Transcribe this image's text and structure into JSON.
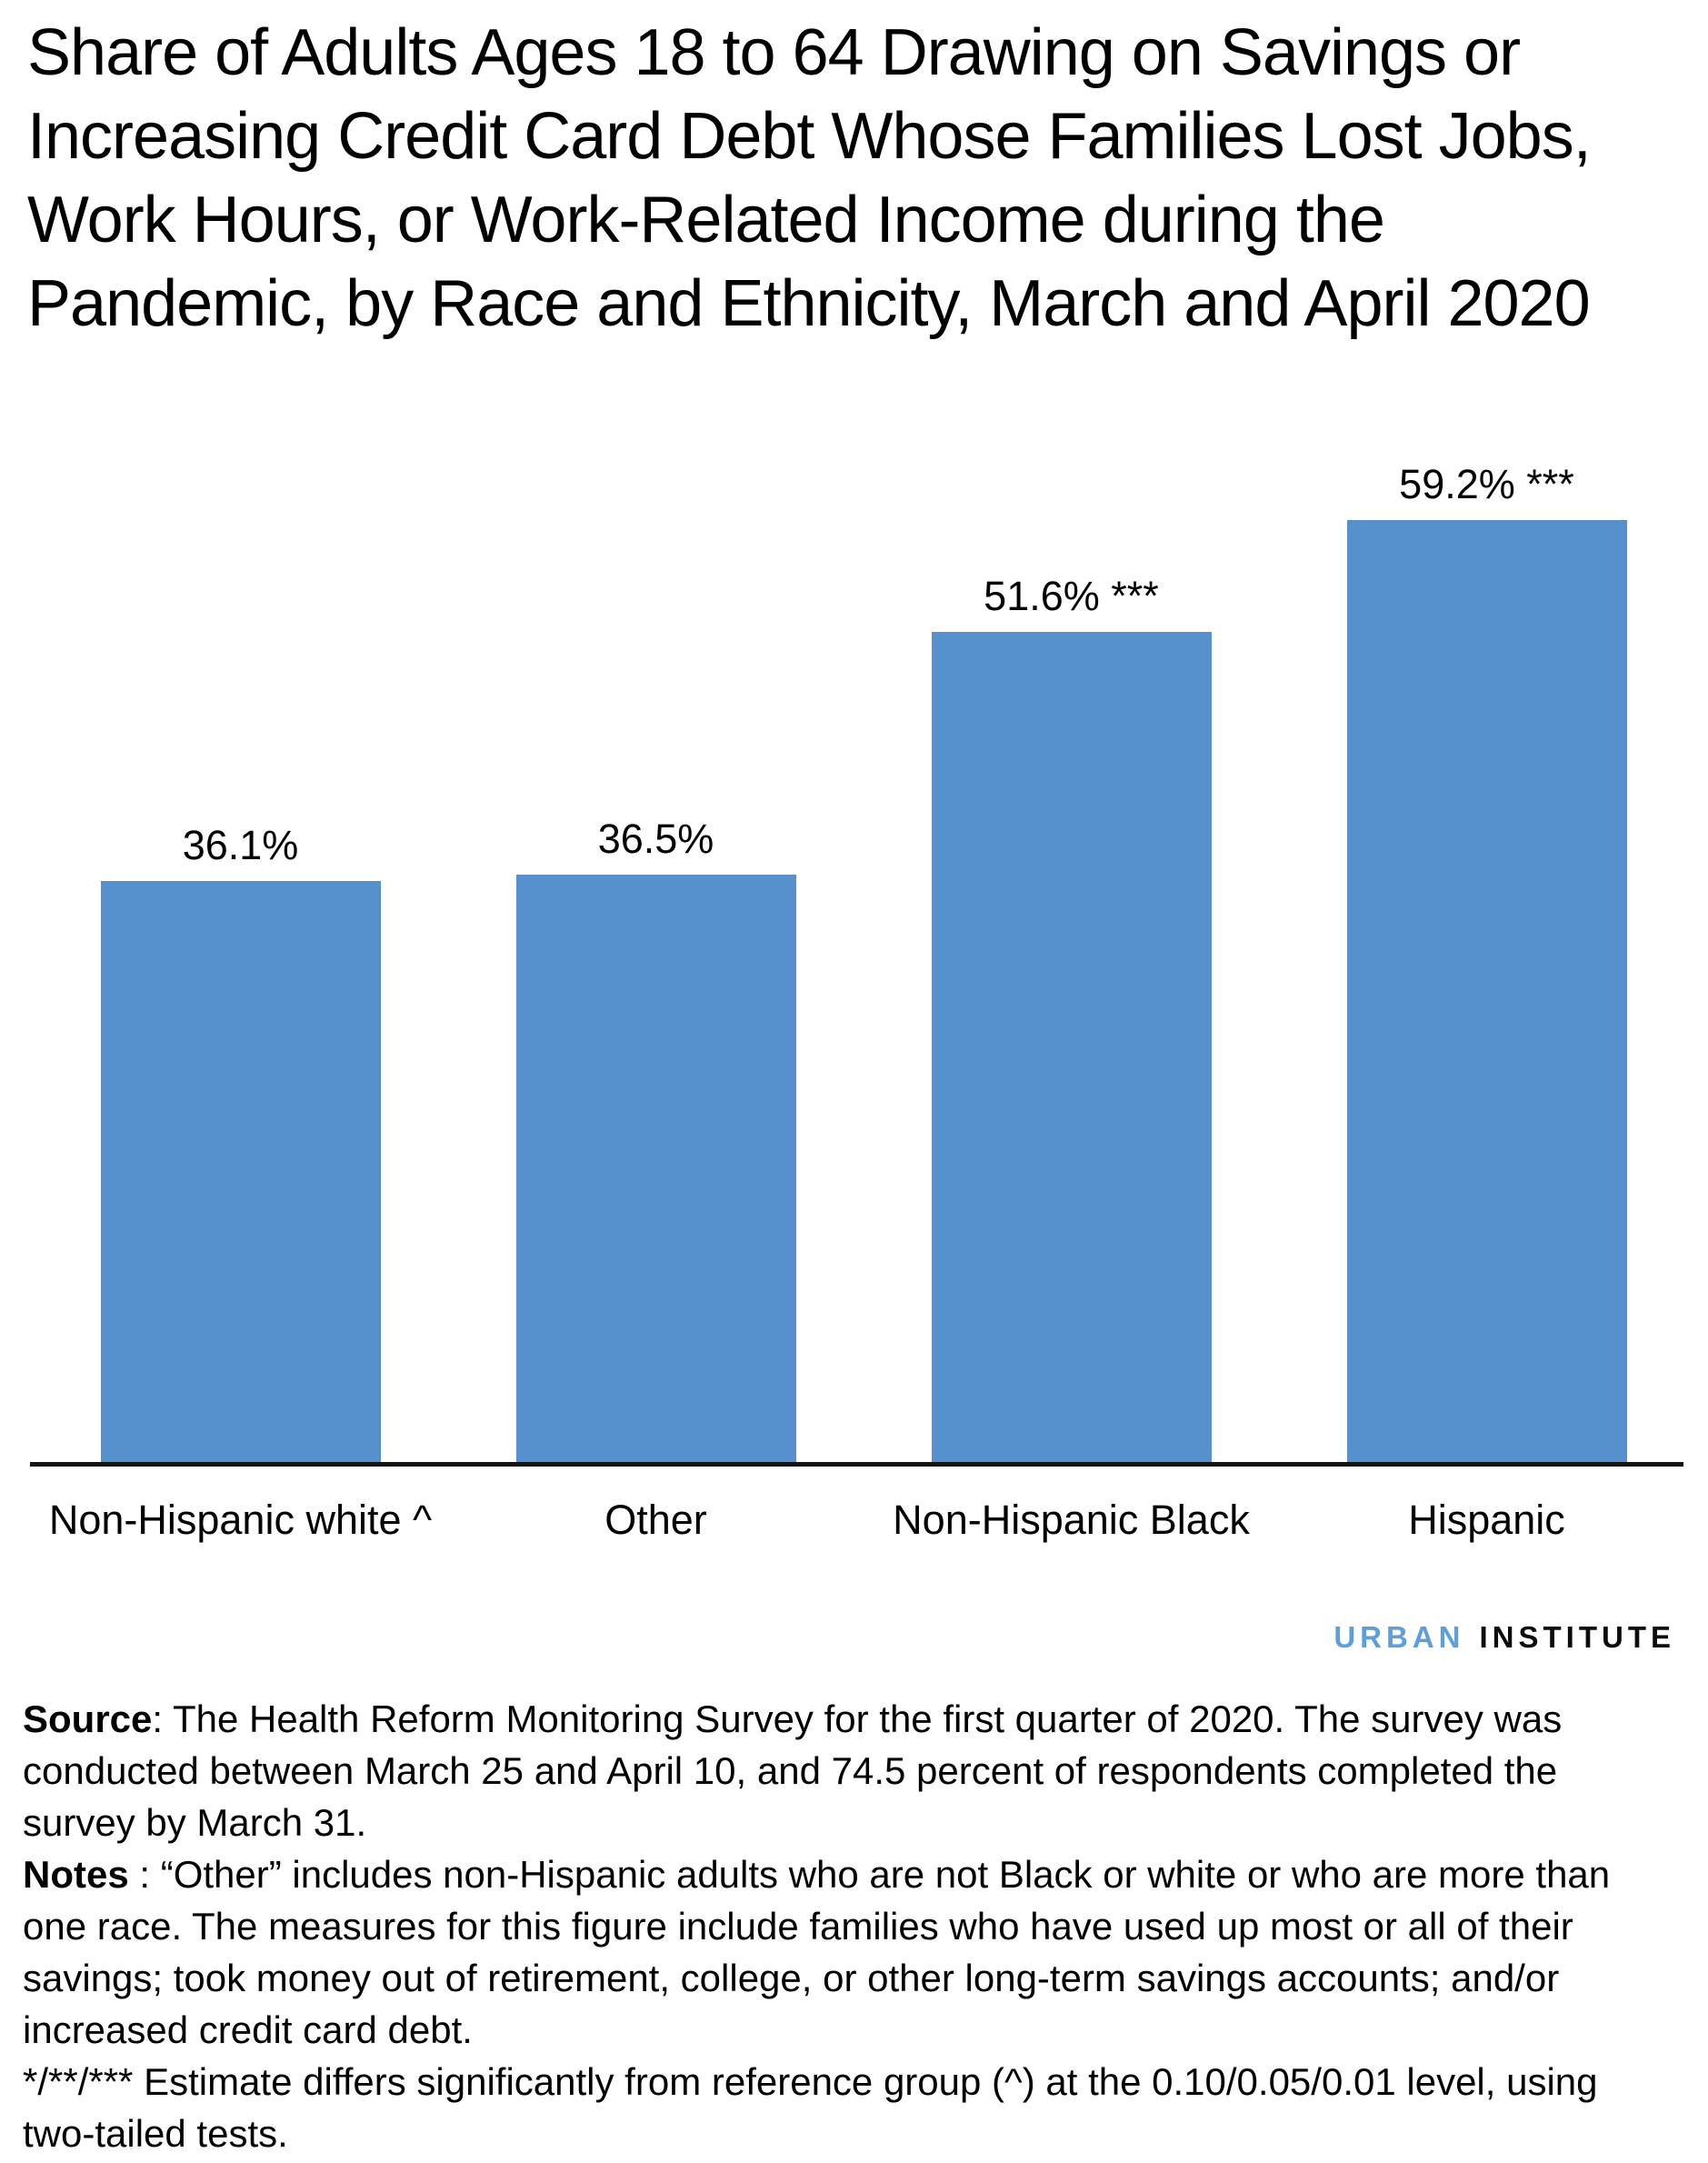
{
  "chart_data": {
    "type": "bar",
    "title": "Share of Adults Ages 18 to 64 Drawing on Savings or Increasing Credit Card Debt Whose Families Lost Jobs, Work Hours, or Work-Related Income during the Pandemic, by Race and Ethnicity, March and April 2020",
    "title_lines": [
      "Share of Adults Ages 18 to 64 Drawing on Savings or",
      "Increasing Credit Card Debt Whose Families Lost Jobs,",
      "Work Hours, or Work-Related Income during the",
      "Pandemic, by Race and Ethnicity, March and April 2020"
    ],
    "categories": [
      "Non-Hispanic white ^",
      "Other",
      "Non-Hispanic Black",
      "Hispanic"
    ],
    "values": [
      36.1,
      36.5,
      51.6,
      59.2
    ],
    "value_labels": [
      "36.1%",
      "36.5%",
      "51.6% ***",
      "59.2% ***"
    ],
    "significance_markers": [
      "",
      "",
      "***",
      "***"
    ],
    "reference_group_marker": "^",
    "xlabel": "",
    "ylabel": "",
    "ylim": [
      0,
      62
    ],
    "grid": false,
    "legend_position": "none",
    "bar_color": "#5691CE",
    "axis_color": "#141414"
  },
  "logo": {
    "urban": "URBAN",
    "institute": "INSTITUTE",
    "urban_color": "#5F9FD9",
    "institute_color": "#0b0b0b"
  },
  "notes": {
    "source_label": "Source",
    "source_rest": ": The Health Reform Monitoring Survey for the first quarter of 2020. The survey was conducted between March 25 and April 10, and 74.5 percent of respondents completed the survey by March 31.",
    "notes_label": "Notes",
    "notes_rest": " : “Other” includes non-Hispanic adults who are not Black or white or who are more than one race. The measures for this figure include families who have used up most or all of their savings; took money out of retirement, college, or other long-term savings accounts; and/or increased credit card debt.",
    "significance": "*/**/*** Estimate differs significantly from reference group (^) at the 0.10/0.05/0.01 level, using two-tailed tests."
  }
}
